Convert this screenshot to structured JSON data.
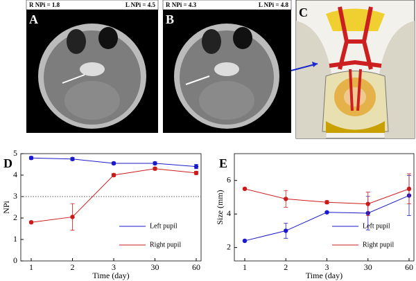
{
  "image_panels": [
    {
      "label": "A",
      "right_eye": "R NPi = 1.8",
      "left_eye": "L NPi = 4.5"
    },
    {
      "label": "B",
      "right_eye": "R NPi = 4.3",
      "left_eye": "L NPi = 4.8"
    },
    {
      "label": "C"
    }
  ],
  "chart_data": [
    {
      "type": "line",
      "panel_label": "D",
      "x_label": "Time (day)",
      "y_label": "NPi",
      "categories": [
        "1",
        "2",
        "3",
        "30",
        "60"
      ],
      "ylim": [
        0,
        5
      ],
      "yticks": [
        0,
        1,
        2,
        3,
        4,
        5
      ],
      "reference_line": 3,
      "legend": "lower right",
      "series": [
        {
          "name": "Left pupil",
          "color": "#1a1acc",
          "values": [
            4.8,
            4.75,
            4.55,
            4.55,
            4.4
          ],
          "errors": [
            0.07,
            0.07,
            0.06,
            0.07,
            0.1
          ]
        },
        {
          "name": "Right pupil",
          "color": "#cc1a1a",
          "values": [
            1.8,
            2.05,
            4.0,
            4.3,
            4.1
          ],
          "errors": [
            0.05,
            0.62,
            0.07,
            0.07,
            0.08
          ]
        }
      ]
    },
    {
      "type": "line",
      "panel_label": "E",
      "x_label": "Time (day)",
      "y_label": "Size (mm)",
      "categories": [
        "1",
        "2",
        "3",
        "30",
        "60"
      ],
      "ylim": [
        1.2,
        7.6
      ],
      "yticks": [
        2,
        4,
        6
      ],
      "legend": "lower right",
      "series": [
        {
          "name": "Left pupil",
          "color": "#1a1acc",
          "values": [
            2.4,
            3.0,
            4.1,
            4.05,
            5.1
          ],
          "errors": [
            0.05,
            0.45,
            0.05,
            1.0,
            1.2
          ]
        },
        {
          "name": "Right pupil",
          "color": "#cc1a1a",
          "values": [
            5.5,
            4.9,
            4.7,
            4.6,
            5.5
          ],
          "errors": [
            0.05,
            0.5,
            0.1,
            0.7,
            0.9
          ]
        }
      ]
    }
  ]
}
